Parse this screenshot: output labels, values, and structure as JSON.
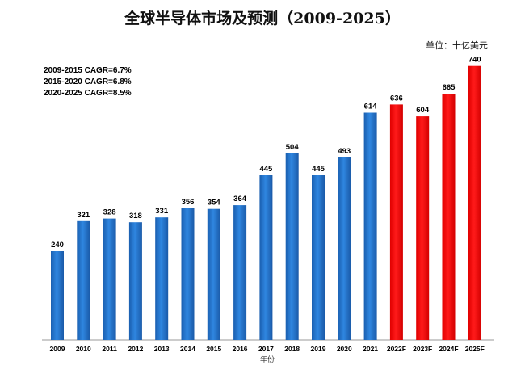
{
  "title": "全球半导体市场及预测（2009-2025）",
  "unit": "单位：十亿美元",
  "cagr_notes": [
    "2009-2015 CAGR=6.7%",
    "2015-2020 CAGR=6.8%",
    "2020-2025 CAGR=8.5%"
  ],
  "colors": {
    "actual": "#1e6fc8",
    "forecast": "#ff0000"
  },
  "chart_data": {
    "type": "bar",
    "title": "全球半导体市场及预测（2009-2025）",
    "xlabel": "年份",
    "ylabel": "",
    "unit": "单位：十亿美元",
    "ylim": [
      0,
      760
    ],
    "grid": false,
    "categories": [
      "2009",
      "2010",
      "2011",
      "2012",
      "2013",
      "2014",
      "2015",
      "2016",
      "2017",
      "2018",
      "2019",
      "2020",
      "2021",
      "2022F",
      "2023F",
      "2024F",
      "2025F"
    ],
    "values": [
      240,
      321,
      328,
      318,
      331,
      356,
      354,
      364,
      445,
      504,
      445,
      493,
      614,
      636,
      604,
      665,
      740
    ],
    "forecast": [
      false,
      false,
      false,
      false,
      false,
      false,
      false,
      false,
      false,
      false,
      false,
      false,
      false,
      true,
      true,
      true,
      true
    ]
  }
}
